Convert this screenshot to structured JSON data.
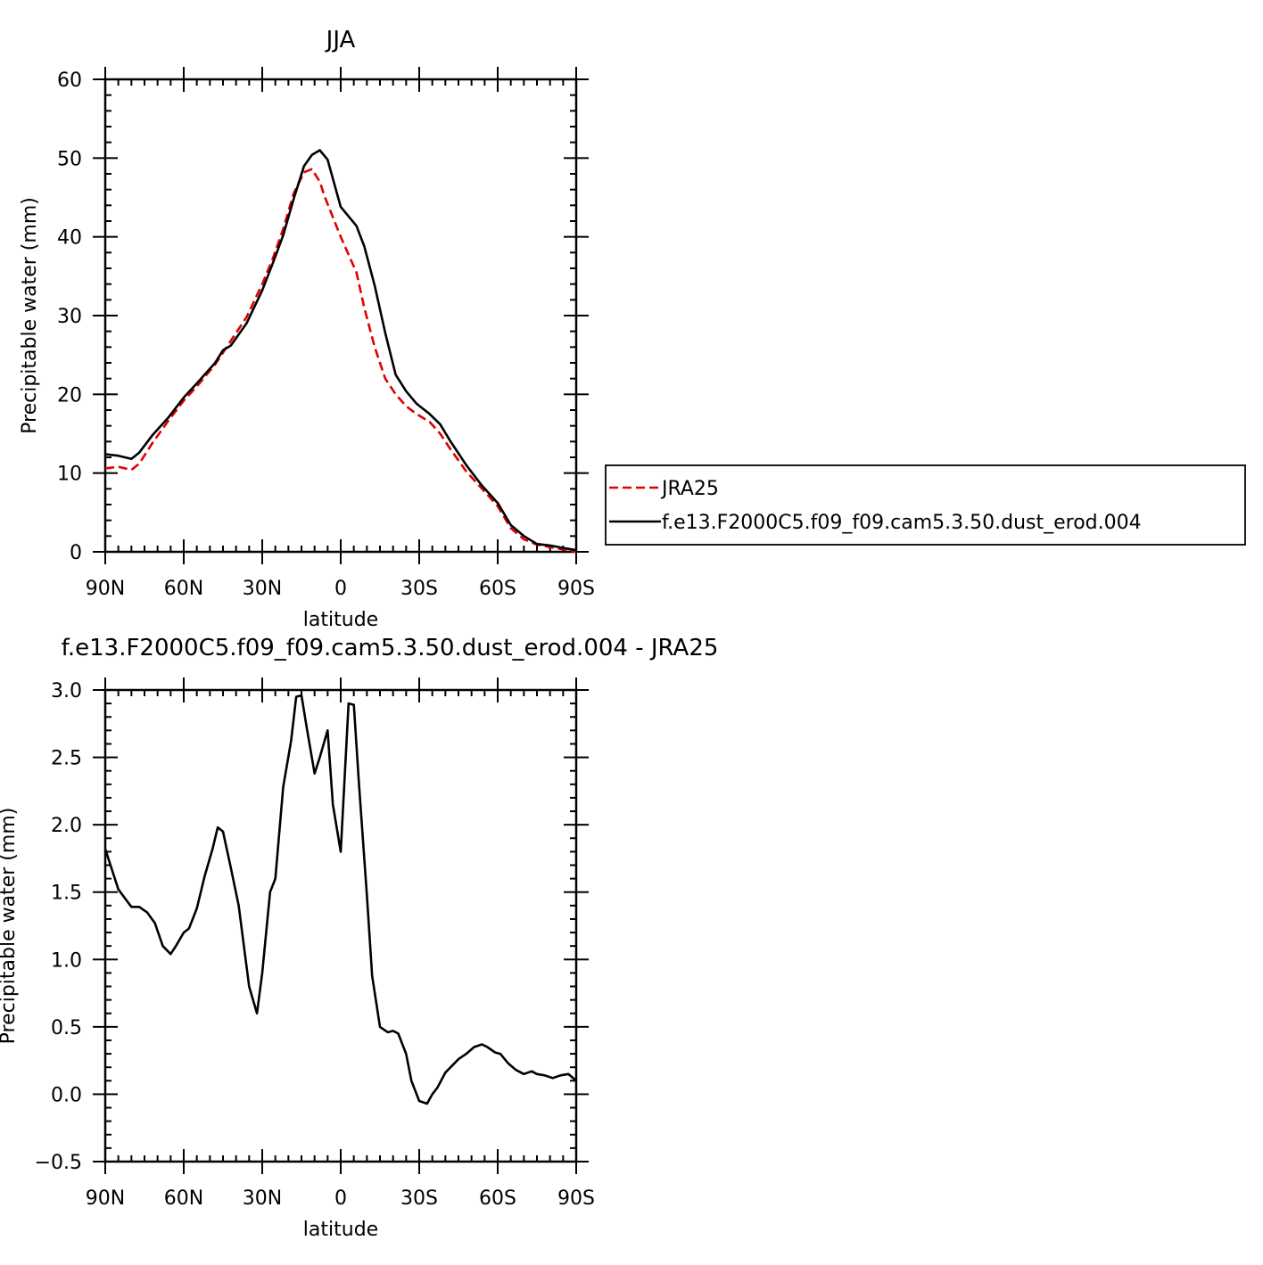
{
  "chart_data": [
    {
      "type": "line",
      "title": "JJA",
      "xlabel": "latitude",
      "ylabel": "Precipitable water (mm)",
      "xlim": [
        90,
        -90
      ],
      "ylim": [
        0,
        60
      ],
      "x_ticks": [
        90,
        60,
        30,
        0,
        -30,
        -60,
        -90
      ],
      "x_tick_labels": [
        "90N",
        "60N",
        "30N",
        "0",
        "30S",
        "60S",
        "90S"
      ],
      "y_ticks": [
        0,
        10,
        20,
        30,
        40,
        50,
        60
      ],
      "y_tick_labels": [
        "0",
        "10",
        "20",
        "30",
        "40",
        "50",
        "60"
      ],
      "legend_position": "right",
      "series": [
        {
          "name": "JRA25",
          "color": "#e00000",
          "dash": "dashed",
          "x": [
            90,
            85,
            80,
            77,
            72,
            66,
            60,
            55,
            48,
            42,
            36,
            30,
            26,
            22,
            18,
            14,
            11,
            8,
            6,
            3,
            0,
            -6,
            -9,
            -13,
            -17,
            -21,
            -25,
            -29,
            -34,
            -38,
            -42,
            -48,
            -54,
            -60,
            -65,
            -70,
            -75,
            -80,
            -85,
            -90
          ],
          "values": [
            10.6,
            10.8,
            10.4,
            11.2,
            13.8,
            16.6,
            19.2,
            21.0,
            23.8,
            26.8,
            29.8,
            34.0,
            37.2,
            41.0,
            45.5,
            48.2,
            48.6,
            47.0,
            45.0,
            42.5,
            40.0,
            35.5,
            31.0,
            26.0,
            22.0,
            20.0,
            18.5,
            17.5,
            16.5,
            15.0,
            13.0,
            10.2,
            8.0,
            5.8,
            3.0,
            1.6,
            0.9,
            0.6,
            0.3,
            0.0
          ]
        },
        {
          "name": "f.e13.F2000C5.f09_f09.cam5.3.50.dust_erod.004",
          "color": "#000000",
          "dash": "solid",
          "x": [
            90,
            85,
            80,
            77,
            72,
            66,
            60,
            55,
            48,
            45,
            42,
            36,
            30,
            26,
            22,
            18,
            14,
            11,
            8,
            5,
            0,
            -6,
            -9,
            -13,
            -17,
            -21,
            -25,
            -29,
            -34,
            -38,
            -42,
            -48,
            -54,
            -60,
            -65,
            -70,
            -75,
            -80,
            -85,
            -90
          ],
          "values": [
            12.4,
            12.2,
            11.8,
            12.6,
            14.8,
            17.0,
            19.6,
            21.4,
            24.0,
            25.6,
            26.2,
            29.0,
            33.2,
            36.6,
            40.2,
            44.8,
            49.0,
            50.4,
            51.0,
            49.8,
            43.8,
            41.4,
            38.8,
            33.8,
            27.8,
            22.5,
            20.4,
            18.8,
            17.5,
            16.2,
            14.0,
            11.0,
            8.4,
            6.2,
            3.4,
            2.0,
            1.0,
            0.8,
            0.5,
            0.2
          ]
        }
      ]
    },
    {
      "type": "line",
      "title": "f.e13.F2000C5.f09_f09.cam5.3.50.dust_erod.004 - JRA25",
      "xlabel": "latitude",
      "ylabel": "Precipitable water (mm)",
      "xlim": [
        90,
        -90
      ],
      "ylim": [
        -0.5,
        3.0
      ],
      "x_ticks": [
        90,
        60,
        30,
        0,
        -30,
        -60,
        -90
      ],
      "x_tick_labels": [
        "90N",
        "60N",
        "30N",
        "0",
        "30S",
        "60S",
        "90S"
      ],
      "y_ticks": [
        -0.5,
        0.0,
        0.5,
        1.0,
        1.5,
        2.0,
        2.5,
        3.0
      ],
      "y_tick_labels": [
        "−0.5",
        "0.0",
        "0.5",
        "1.0",
        "1.5",
        "2.0",
        "2.5",
        "3.0"
      ],
      "series": [
        {
          "name": "",
          "color": "#000000",
          "x": [
            90,
            85,
            80,
            77,
            74,
            71,
            68,
            65,
            63,
            60,
            58,
            55,
            52,
            49,
            47,
            45,
            42,
            39,
            35,
            32,
            30,
            27,
            25,
            22,
            19,
            17,
            15,
            13,
            10,
            8,
            5,
            3,
            0,
            -3,
            -5,
            -7,
            -10,
            -12,
            -15,
            -18,
            -20,
            -22,
            -25,
            -27,
            -30,
            -33,
            -35,
            -37,
            -40,
            -43,
            -45,
            -48,
            -51,
            -54,
            -56,
            -59,
            -61,
            -64,
            -67,
            -70,
            -73,
            -75,
            -78,
            -81,
            -84,
            -87,
            -90
          ],
          "values": [
            1.82,
            1.52,
            1.39,
            1.39,
            1.35,
            1.27,
            1.1,
            1.04,
            1.1,
            1.2,
            1.23,
            1.38,
            1.62,
            1.82,
            1.98,
            1.95,
            1.68,
            1.4,
            0.8,
            0.6,
            0.9,
            1.5,
            1.6,
            2.28,
            2.62,
            2.95,
            2.96,
            2.72,
            2.38,
            2.5,
            2.7,
            2.15,
            1.8,
            2.9,
            2.89,
            2.3,
            1.48,
            0.88,
            0.5,
            0.46,
            0.47,
            0.45,
            0.3,
            0.1,
            -0.05,
            -0.07,
            0.0,
            0.05,
            0.16,
            0.22,
            0.26,
            0.3,
            0.35,
            0.37,
            0.35,
            0.31,
            0.3,
            0.23,
            0.18,
            0.15,
            0.17,
            0.15,
            0.14,
            0.12,
            0.14,
            0.15,
            0.1
          ]
        }
      ]
    }
  ]
}
